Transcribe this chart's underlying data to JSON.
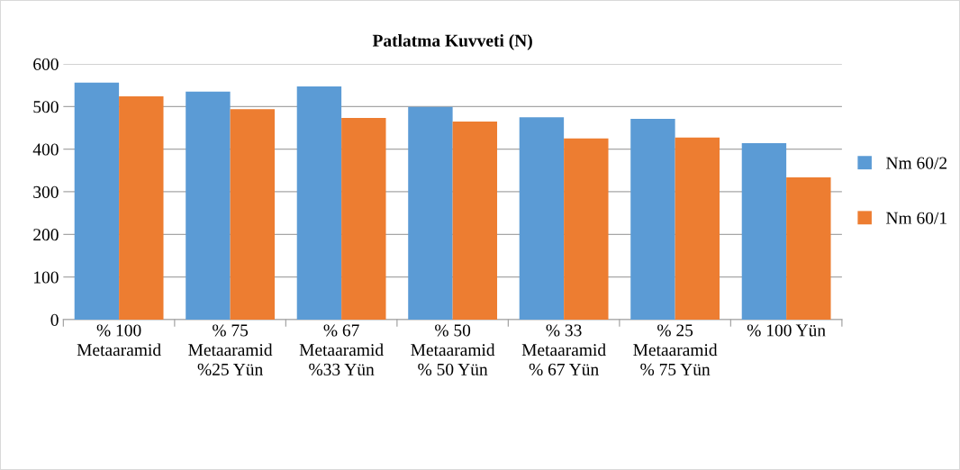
{
  "chart_data": {
    "type": "bar",
    "title": "Patlatma Kuvveti (N)",
    "categories": [
      "% 100\nMetaaramid",
      "% 75\nMetaaramid\n%25 Yün",
      "% 67\nMetaaramid\n%33 Yün",
      "% 50\nMetaaramid\n% 50 Yün",
      "% 33\nMetaaramid\n% 67 Yün",
      "% 25\nMetaaramid\n% 75 Yün",
      "% 100 Yün"
    ],
    "series": [
      {
        "name": "Nm 60/2",
        "color": "#5b9bd5",
        "values": [
          556,
          535,
          547,
          499,
          475,
          471,
          414
        ]
      },
      {
        "name": "Nm 60/1",
        "color": "#ed7d31",
        "values": [
          524,
          494,
          473,
          465,
          425,
          427,
          334
        ]
      }
    ],
    "ylim": [
      0,
      600
    ],
    "yticks": [
      0,
      100,
      200,
      300,
      400,
      500,
      600
    ],
    "grid": "y",
    "legend": "right"
  }
}
